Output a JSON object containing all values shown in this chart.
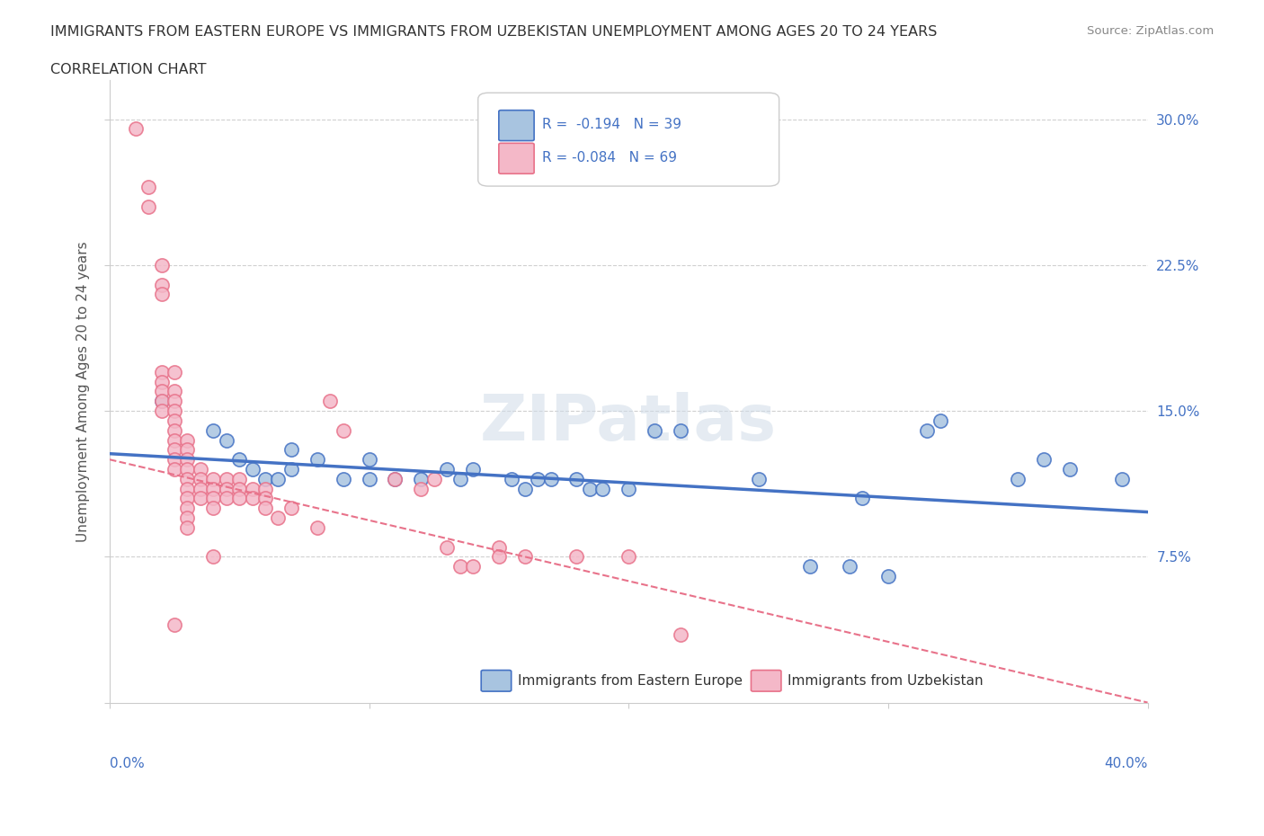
{
  "title_line1": "IMMIGRANTS FROM EASTERN EUROPE VS IMMIGRANTS FROM UZBEKISTAN UNEMPLOYMENT AMONG AGES 20 TO 24 YEARS",
  "title_line2": "CORRELATION CHART",
  "source_text": "Source: ZipAtlas.com",
  "ylabel": "Unemployment Among Ages 20 to 24 years",
  "xlim": [
    0.0,
    0.4
  ],
  "ylim": [
    0.0,
    0.32
  ],
  "ytick_values": [
    0.0,
    0.075,
    0.15,
    0.225,
    0.3
  ],
  "watermark": "ZIPatlas",
  "blue_color": "#4472c4",
  "pink_color": "#e8728a",
  "blue_fill": "#a8c4e0",
  "pink_fill": "#f4b8c8",
  "blue_points": [
    [
      0.02,
      0.155
    ],
    [
      0.04,
      0.14
    ],
    [
      0.045,
      0.135
    ],
    [
      0.05,
      0.125
    ],
    [
      0.055,
      0.12
    ],
    [
      0.06,
      0.115
    ],
    [
      0.065,
      0.115
    ],
    [
      0.07,
      0.12
    ],
    [
      0.07,
      0.13
    ],
    [
      0.08,
      0.125
    ],
    [
      0.09,
      0.115
    ],
    [
      0.1,
      0.115
    ],
    [
      0.1,
      0.125
    ],
    [
      0.11,
      0.115
    ],
    [
      0.12,
      0.115
    ],
    [
      0.13,
      0.12
    ],
    [
      0.135,
      0.115
    ],
    [
      0.14,
      0.12
    ],
    [
      0.155,
      0.115
    ],
    [
      0.16,
      0.11
    ],
    [
      0.165,
      0.115
    ],
    [
      0.17,
      0.115
    ],
    [
      0.18,
      0.115
    ],
    [
      0.185,
      0.11
    ],
    [
      0.19,
      0.11
    ],
    [
      0.2,
      0.11
    ],
    [
      0.21,
      0.14
    ],
    [
      0.22,
      0.14
    ],
    [
      0.25,
      0.115
    ],
    [
      0.27,
      0.07
    ],
    [
      0.285,
      0.07
    ],
    [
      0.29,
      0.105
    ],
    [
      0.3,
      0.065
    ],
    [
      0.315,
      0.14
    ],
    [
      0.32,
      0.145
    ],
    [
      0.35,
      0.115
    ],
    [
      0.36,
      0.125
    ],
    [
      0.37,
      0.12
    ],
    [
      0.39,
      0.115
    ]
  ],
  "pink_points": [
    [
      0.01,
      0.295
    ],
    [
      0.015,
      0.265
    ],
    [
      0.015,
      0.255
    ],
    [
      0.02,
      0.225
    ],
    [
      0.02,
      0.215
    ],
    [
      0.02,
      0.21
    ],
    [
      0.02,
      0.17
    ],
    [
      0.02,
      0.165
    ],
    [
      0.02,
      0.16
    ],
    [
      0.02,
      0.155
    ],
    [
      0.02,
      0.15
    ],
    [
      0.025,
      0.17
    ],
    [
      0.025,
      0.16
    ],
    [
      0.025,
      0.155
    ],
    [
      0.025,
      0.15
    ],
    [
      0.025,
      0.145
    ],
    [
      0.025,
      0.14
    ],
    [
      0.025,
      0.135
    ],
    [
      0.025,
      0.13
    ],
    [
      0.025,
      0.125
    ],
    [
      0.025,
      0.12
    ],
    [
      0.03,
      0.135
    ],
    [
      0.03,
      0.13
    ],
    [
      0.03,
      0.125
    ],
    [
      0.03,
      0.12
    ],
    [
      0.03,
      0.115
    ],
    [
      0.03,
      0.11
    ],
    [
      0.03,
      0.105
    ],
    [
      0.03,
      0.1
    ],
    [
      0.03,
      0.095
    ],
    [
      0.03,
      0.09
    ],
    [
      0.035,
      0.12
    ],
    [
      0.035,
      0.115
    ],
    [
      0.035,
      0.11
    ],
    [
      0.035,
      0.105
    ],
    [
      0.04,
      0.115
    ],
    [
      0.04,
      0.11
    ],
    [
      0.04,
      0.105
    ],
    [
      0.04,
      0.1
    ],
    [
      0.04,
      0.075
    ],
    [
      0.045,
      0.115
    ],
    [
      0.045,
      0.11
    ],
    [
      0.045,
      0.105
    ],
    [
      0.05,
      0.115
    ],
    [
      0.05,
      0.11
    ],
    [
      0.05,
      0.105
    ],
    [
      0.055,
      0.11
    ],
    [
      0.055,
      0.105
    ],
    [
      0.06,
      0.11
    ],
    [
      0.06,
      0.105
    ],
    [
      0.06,
      0.1
    ],
    [
      0.065,
      0.095
    ],
    [
      0.07,
      0.1
    ],
    [
      0.08,
      0.09
    ],
    [
      0.085,
      0.155
    ],
    [
      0.09,
      0.14
    ],
    [
      0.11,
      0.115
    ],
    [
      0.12,
      0.11
    ],
    [
      0.125,
      0.115
    ],
    [
      0.13,
      0.08
    ],
    [
      0.135,
      0.07
    ],
    [
      0.14,
      0.07
    ],
    [
      0.15,
      0.08
    ],
    [
      0.15,
      0.075
    ],
    [
      0.16,
      0.075
    ],
    [
      0.18,
      0.075
    ],
    [
      0.2,
      0.075
    ],
    [
      0.22,
      0.035
    ],
    [
      0.025,
      0.04
    ]
  ],
  "blue_line_x": [
    0.0,
    0.4
  ],
  "blue_line_y_start": 0.128,
  "blue_line_y_end": 0.098,
  "pink_line_x": [
    0.0,
    0.4
  ],
  "pink_line_y_start": 0.125,
  "pink_line_y_end": 0.0,
  "grid_color": "#d0d0d0",
  "background_color": "#ffffff",
  "title_color": "#333333",
  "axis_color": "#4472c4"
}
